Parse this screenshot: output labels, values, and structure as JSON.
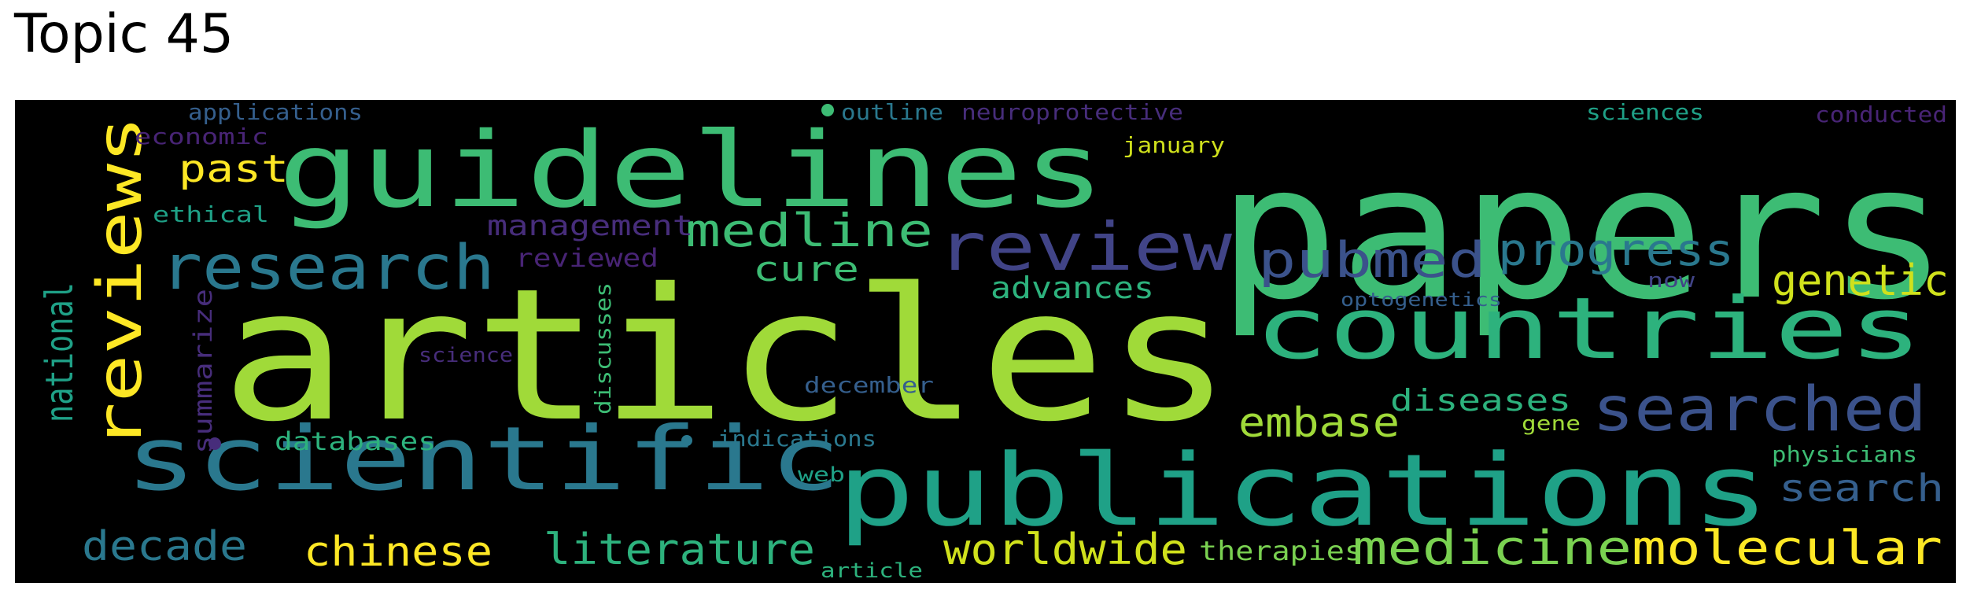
{
  "title": "Topic 45",
  "colors": {
    "lime": "#a0da39",
    "green": "#3dbc74",
    "teal_green": "#2db27d",
    "mint": "#4ac16d",
    "light_green": "#7ad151",
    "aqua": "#1fa187",
    "blue_teal": "#2a788e",
    "steel": "#355f8d",
    "slate_blue": "#3b528b",
    "indigo": "#414487",
    "purple": "#472d7b",
    "dark_purple": "#482475",
    "yellow": "#fde725",
    "yellow_green": "#d0e11c"
  },
  "words": [
    {
      "key": "w_papers",
      "text": "papers"
    },
    {
      "key": "w_articles",
      "text": "articles"
    },
    {
      "key": "w_guidelines",
      "text": "guidelines"
    },
    {
      "key": "w_reviews",
      "text": "reviews"
    },
    {
      "key": "w_scientific",
      "text": "scientific"
    },
    {
      "key": "w_publications",
      "text": "publications"
    },
    {
      "key": "w_countries",
      "text": "countries"
    },
    {
      "key": "w_review",
      "text": "review"
    },
    {
      "key": "w_research",
      "text": "research"
    },
    {
      "key": "w_searched",
      "text": "searched"
    },
    {
      "key": "w_medline",
      "text": "medline"
    },
    {
      "key": "w_pubmed",
      "text": "pubmed"
    },
    {
      "key": "w_progress",
      "text": "progress"
    },
    {
      "key": "w_medicine",
      "text": "medicine"
    },
    {
      "key": "w_molecular",
      "text": "molecular"
    },
    {
      "key": "w_literature",
      "text": "literature"
    },
    {
      "key": "w_worldwide",
      "text": "worldwide"
    },
    {
      "key": "w_chinese",
      "text": "chinese"
    },
    {
      "key": "w_decade",
      "text": "decade"
    },
    {
      "key": "w_embase",
      "text": "embase"
    },
    {
      "key": "w_genetic",
      "text": "genetic"
    },
    {
      "key": "w_national",
      "text": "national"
    },
    {
      "key": "w_past",
      "text": "past"
    },
    {
      "key": "w_cure",
      "text": "cure"
    },
    {
      "key": "w_search",
      "text": "search"
    },
    {
      "key": "w_diseases",
      "text": "diseases"
    },
    {
      "key": "w_advances",
      "text": "advances"
    },
    {
      "key": "w_management",
      "text": "management"
    },
    {
      "key": "w_therapies",
      "text": "therapies"
    },
    {
      "key": "w_databases",
      "text": "databases"
    },
    {
      "key": "w_reviewed",
      "text": "reviewed"
    },
    {
      "key": "w_summarize",
      "text": "summarize"
    },
    {
      "key": "w_indications",
      "text": "indications"
    },
    {
      "key": "w_december",
      "text": "december"
    },
    {
      "key": "w_discusses",
      "text": "discusses"
    },
    {
      "key": "w_physicians",
      "text": "physicians"
    },
    {
      "key": "w_applications",
      "text": "applications"
    },
    {
      "key": "w_economic",
      "text": "economic"
    },
    {
      "key": "w_ethical",
      "text": "ethical"
    },
    {
      "key": "w_outline",
      "text": "outline"
    },
    {
      "key": "w_neuroprotective",
      "text": "neuroprotective"
    },
    {
      "key": "w_january",
      "text": "january"
    },
    {
      "key": "w_sciences",
      "text": "sciences"
    },
    {
      "key": "w_conducted",
      "text": "conducted"
    },
    {
      "key": "w_optogenetics",
      "text": "optogenetics"
    },
    {
      "key": "w_now",
      "text": "now"
    },
    {
      "key": "w_science",
      "text": "science"
    },
    {
      "key": "w_gene",
      "text": "gene"
    },
    {
      "key": "w_web",
      "text": "web"
    },
    {
      "key": "w_article",
      "text": "article"
    }
  ]
}
